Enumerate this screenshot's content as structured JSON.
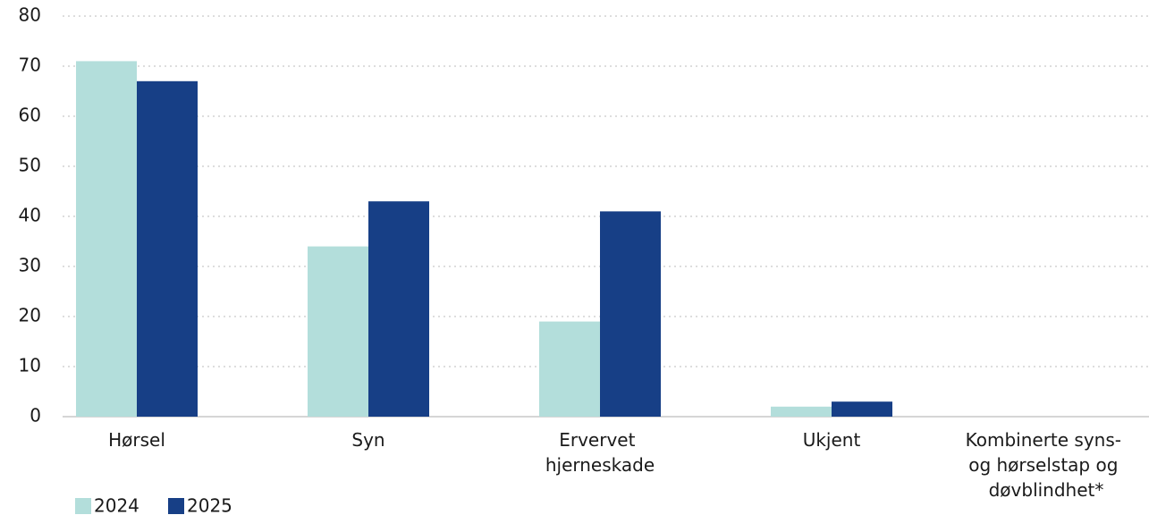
{
  "chart_data": {
    "type": "bar",
    "categories": [
      "Hørsel",
      "Syn",
      "Ervervet hjerneskade",
      "Ukjent",
      "Kombinerte syns- og hørselstap og døvblindhet*"
    ],
    "series": [
      {
        "name": "2024",
        "color": "#b3dedb",
        "values": [
          71,
          34,
          19,
          2,
          0
        ]
      },
      {
        "name": "2025",
        "color": "#173f86",
        "values": [
          67,
          43,
          41,
          3,
          0
        ]
      }
    ],
    "ylim": [
      0,
      80
    ],
    "yticks": [
      0,
      10,
      20,
      30,
      40,
      50,
      60,
      70,
      80
    ],
    "grid": true,
    "legend": "bottom-left"
  }
}
